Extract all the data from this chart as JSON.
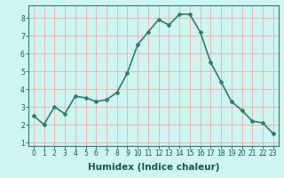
{
  "x": [
    0,
    1,
    2,
    3,
    4,
    5,
    6,
    7,
    8,
    9,
    10,
    11,
    12,
    13,
    14,
    15,
    16,
    17,
    18,
    19,
    20,
    21,
    22,
    23
  ],
  "y": [
    2.5,
    2.0,
    3.0,
    2.6,
    3.6,
    3.5,
    3.3,
    3.4,
    3.8,
    4.9,
    6.5,
    7.2,
    7.9,
    7.6,
    8.2,
    8.2,
    7.2,
    5.5,
    4.4,
    3.3,
    2.8,
    2.2,
    2.1,
    1.5
  ],
  "xlabel": "Humidex (Indice chaleur)",
  "line_color": "#2e7d6e",
  "marker": "D",
  "marker_size": 2.0,
  "bg_color": "#cef5f0",
  "grid_color": "#f0aaaa",
  "xlim": [
    -0.5,
    23.5
  ],
  "ylim": [
    0.8,
    8.7
  ],
  "yticks": [
    1,
    2,
    3,
    4,
    5,
    6,
    7,
    8
  ],
  "xticks": [
    0,
    1,
    2,
    3,
    4,
    5,
    6,
    7,
    8,
    9,
    10,
    11,
    12,
    13,
    14,
    15,
    16,
    17,
    18,
    19,
    20,
    21,
    22,
    23
  ],
  "xtick_labels": [
    "0",
    "1",
    "2",
    "3",
    "4",
    "5",
    "6",
    "7",
    "8",
    "9",
    "10",
    "11",
    "12",
    "13",
    "14",
    "15",
    "16",
    "17",
    "18",
    "19",
    "20",
    "21",
    "22",
    "23"
  ],
  "tick_fontsize": 5.5,
  "xlabel_fontsize": 7.5,
  "line_width": 1.2
}
